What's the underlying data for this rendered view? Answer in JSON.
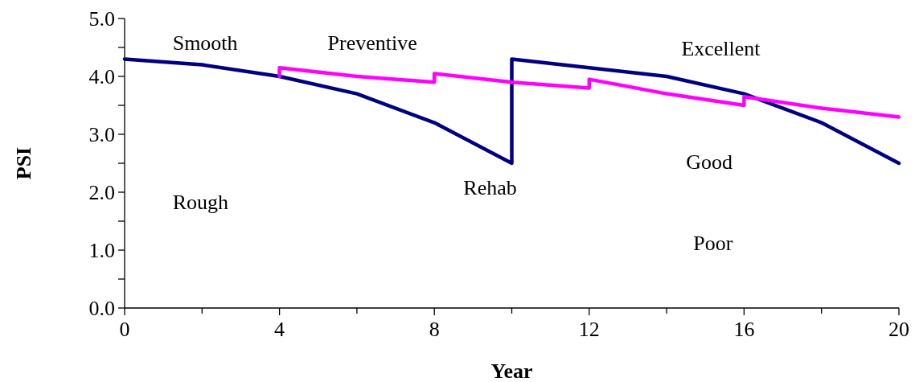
{
  "chart_data": {
    "type": "line",
    "xlabel": "Year",
    "ylabel": "PSI",
    "xlim": [
      0,
      20
    ],
    "ylim": [
      0,
      5
    ],
    "xticks": [
      0,
      {
        "value": 2,
        "label": null
      },
      4,
      {
        "value": 6,
        "label": null
      },
      8,
      {
        "value": 10,
        "label": null
      },
      12,
      {
        "value": 14,
        "label": null
      },
      16,
      {
        "value": 18,
        "label": null
      },
      20
    ],
    "yticks": [
      {
        "value": 0,
        "label": "0.0"
      },
      {
        "value": 0.5,
        "label": null
      },
      {
        "value": 1,
        "label": "1.0"
      },
      {
        "value": 1.5,
        "label": null
      },
      {
        "value": 2,
        "label": "2.0"
      },
      {
        "value": 2.5,
        "label": null
      },
      {
        "value": 3,
        "label": "3.0"
      },
      {
        "value": 3.5,
        "label": null
      },
      {
        "value": 4,
        "label": "4.0"
      },
      {
        "value": 4.5,
        "label": null
      },
      {
        "value": 5,
        "label": "5.0"
      }
    ],
    "grid": false,
    "marker": "none",
    "line_style": "solid",
    "series": [
      {
        "color": "#000080",
        "x": [
          0,
          2,
          4,
          6,
          8,
          10,
          10,
          12,
          14,
          16,
          18,
          20
        ],
        "values": [
          4.3,
          4.2,
          4.0,
          3.7,
          3.2,
          2.5,
          4.3,
          4.15,
          4.0,
          3.7,
          3.2,
          2.5
        ]
      },
      {
        "color": "#ff00ff",
        "x": [
          4,
          4,
          6,
          8,
          8,
          10,
          12,
          12,
          14,
          16,
          16,
          18,
          20
        ],
        "values": [
          4.0,
          4.15,
          4.0,
          3.9,
          4.05,
          3.9,
          3.8,
          3.95,
          3.7,
          3.5,
          3.65,
          3.45,
          3.3
        ]
      }
    ],
    "annotations": [
      "Smooth",
      "Preventive",
      "Excellent",
      "Good",
      "Rehab",
      "Rough",
      "Poor"
    ]
  }
}
